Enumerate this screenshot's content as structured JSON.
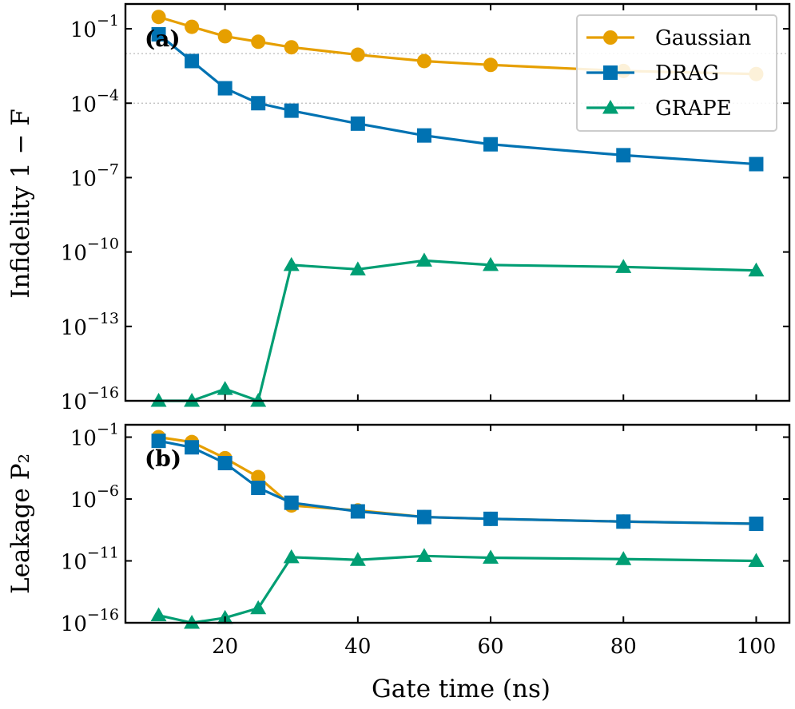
{
  "chart_data": [
    {
      "panel_label": "(a)",
      "type": "line",
      "ylabel": "Infidelity 1 − F",
      "yscale": "log",
      "ylim": [
        1e-16,
        1
      ],
      "xlim": [
        5,
        105
      ],
      "y_ticks": [
        {
          "value": 0.1,
          "mantissa": "10",
          "exponent": "−1"
        },
        {
          "value": 0.0001,
          "mantissa": "10",
          "exponent": "−4"
        },
        {
          "value": 1e-07,
          "mantissa": "10",
          "exponent": "−7"
        },
        {
          "value": 1e-10,
          "mantissa": "10",
          "exponent": "−10"
        },
        {
          "value": 1e-13,
          "mantissa": "10",
          "exponent": "−13"
        },
        {
          "value": 1e-16,
          "mantissa": "10",
          "exponent": "−16"
        }
      ],
      "reference_lines": [
        0.01,
        0.0001
      ],
      "grid": false,
      "legend": "top-right",
      "series": [
        {
          "name": "Gaussian",
          "color": "#E69F00",
          "marker": "circle",
          "points": [
            [
              10,
              0.3
            ],
            [
              15,
              0.12
            ],
            [
              20,
              0.05
            ],
            [
              25,
              0.03
            ],
            [
              30,
              0.018
            ],
            [
              40,
              0.009
            ],
            [
              50,
              0.005
            ],
            [
              60,
              0.0035
            ],
            [
              80,
              0.002
            ],
            [
              100,
              0.0015
            ]
          ]
        },
        {
          "name": "DRAG",
          "color": "#0072B2",
          "marker": "square",
          "points": [
            [
              10,
              0.06
            ],
            [
              15,
              0.005
            ],
            [
              20,
              0.0004
            ],
            [
              25,
              0.0001
            ],
            [
              30,
              5e-05
            ],
            [
              40,
              1.5e-05
            ],
            [
              50,
              5e-06
            ],
            [
              60,
              2.2e-06
            ],
            [
              80,
              8e-07
            ],
            [
              100,
              3.5e-07
            ]
          ]
        },
        {
          "name": "GRAPE",
          "color": "#009E73",
          "marker": "triangle",
          "points": [
            [
              10,
              1e-16
            ],
            [
              15,
              1e-16
            ],
            [
              20,
              3e-16
            ],
            [
              25,
              8e-17
            ],
            [
              30,
              3e-11
            ],
            [
              40,
              2e-11
            ],
            [
              50,
              4.5e-11
            ],
            [
              60,
              3e-11
            ],
            [
              80,
              2.5e-11
            ],
            [
              100,
              1.8e-11
            ]
          ]
        }
      ]
    },
    {
      "panel_label": "(b)",
      "type": "line",
      "ylabel": "Leakage P₂",
      "yscale": "log",
      "ylim": [
        1e-16,
        1
      ],
      "xlim": [
        5,
        105
      ],
      "y_ticks": [
        {
          "value": 0.1,
          "mantissa": "10",
          "exponent": "−1"
        },
        {
          "value": 1e-06,
          "mantissa": "10",
          "exponent": "−6"
        },
        {
          "value": 1e-11,
          "mantissa": "10",
          "exponent": "−11"
        },
        {
          "value": 1e-16,
          "mantissa": "10",
          "exponent": "−16"
        }
      ],
      "grid": false,
      "series": [
        {
          "name": "Gaussian",
          "color": "#E69F00",
          "marker": "circle",
          "points": [
            [
              10,
              0.1
            ],
            [
              15,
              0.04
            ],
            [
              20,
              0.002
            ],
            [
              25,
              6e-05
            ],
            [
              30,
              3e-07
            ],
            [
              40,
              1.2e-07
            ],
            [
              50,
              3.5e-08
            ],
            [
              60,
              2.5e-08
            ],
            [
              80,
              1.5e-08
            ],
            [
              100,
              1e-08
            ]
          ]
        },
        {
          "name": "DRAG",
          "color": "#0072B2",
          "marker": "square",
          "points": [
            [
              10,
              0.05
            ],
            [
              15,
              0.015
            ],
            [
              20,
              0.0008
            ],
            [
              25,
              8e-06
            ],
            [
              30,
              5e-07
            ],
            [
              40,
              1e-07
            ],
            [
              50,
              3.5e-08
            ],
            [
              60,
              2.5e-08
            ],
            [
              80,
              1.5e-08
            ],
            [
              100,
              1e-08
            ]
          ]
        },
        {
          "name": "GRAPE",
          "color": "#009E73",
          "marker": "triangle",
          "points": [
            [
              10,
              4e-16
            ],
            [
              15,
              1e-16
            ],
            [
              20,
              2.5e-16
            ],
            [
              25,
              1.5e-15
            ],
            [
              30,
              2e-11
            ],
            [
              40,
              1.2e-11
            ],
            [
              50,
              2.5e-11
            ],
            [
              60,
              1.8e-11
            ],
            [
              80,
              1.4e-11
            ],
            [
              100,
              1e-11
            ]
          ]
        }
      ]
    }
  ],
  "x_axis": {
    "label": "Gate time (ns)",
    "ticks": [
      20,
      40,
      60,
      80,
      100
    ]
  }
}
